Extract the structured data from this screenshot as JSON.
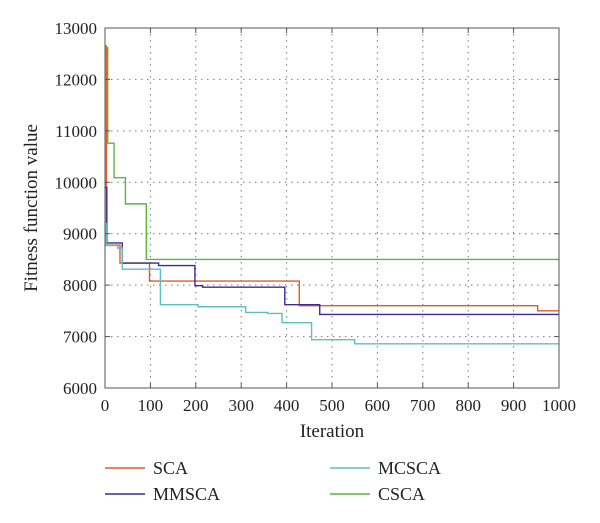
{
  "chart_data": {
    "type": "line",
    "title": "",
    "xlabel": "Iteration",
    "ylabel": "Fitness function value",
    "xlim": [
      0,
      1000
    ],
    "ylim": [
      6000,
      13000
    ],
    "xticks": [
      0,
      100,
      200,
      300,
      400,
      500,
      600,
      700,
      800,
      900,
      1000
    ],
    "yticks": [
      6000,
      7000,
      8000,
      9000,
      10000,
      11000,
      12000,
      13000
    ],
    "grid": "dotted",
    "legend_position": "below plot, two columns",
    "series": [
      {
        "name": "SCA",
        "color": "#e05a2b",
        "step": true,
        "points": [
          [
            0,
            12650
          ],
          [
            3,
            8780
          ],
          [
            30,
            8780
          ],
          [
            33,
            8430
          ],
          [
            95,
            8430
          ],
          [
            98,
            8080
          ],
          [
            425,
            8080
          ],
          [
            428,
            7600
          ],
          [
            950,
            7600
          ],
          [
            953,
            7500
          ],
          [
            1000,
            7500
          ]
        ]
      },
      {
        "name": "MMSCA",
        "color": "#3a2c93",
        "step": true,
        "points": [
          [
            0,
            9900
          ],
          [
            4,
            8820
          ],
          [
            35,
            8820
          ],
          [
            38,
            8430
          ],
          [
            115,
            8430
          ],
          [
            118,
            8380
          ],
          [
            195,
            8380
          ],
          [
            198,
            7990
          ],
          [
            215,
            7960
          ],
          [
            393,
            7960
          ],
          [
            396,
            7620
          ],
          [
            470,
            7620
          ],
          [
            473,
            7430
          ],
          [
            1000,
            7430
          ]
        ]
      },
      {
        "name": "MCSCA",
        "color": "#5cbfc0",
        "step": true,
        "points": [
          [
            0,
            9200
          ],
          [
            3,
            8770
          ],
          [
            25,
            8770
          ],
          [
            28,
            8720
          ],
          [
            35,
            8720
          ],
          [
            38,
            8310
          ],
          [
            115,
            8310
          ],
          [
            122,
            7620
          ],
          [
            200,
            7620
          ],
          [
            205,
            7580
          ],
          [
            305,
            7580
          ],
          [
            310,
            7470
          ],
          [
            355,
            7470
          ],
          [
            358,
            7450
          ],
          [
            385,
            7450
          ],
          [
            390,
            7270
          ],
          [
            445,
            7270
          ],
          [
            455,
            6940
          ],
          [
            545,
            6940
          ],
          [
            550,
            6860
          ],
          [
            1000,
            6860
          ]
        ]
      },
      {
        "name": "CSCA",
        "color": "#5db53c",
        "step": true,
        "points": [
          [
            0,
            12650
          ],
          [
            3,
            12620
          ],
          [
            6,
            10760
          ],
          [
            18,
            10760
          ],
          [
            20,
            10090
          ],
          [
            42,
            10090
          ],
          [
            45,
            9580
          ],
          [
            88,
            9580
          ],
          [
            91,
            8500
          ],
          [
            1000,
            8500
          ]
        ]
      }
    ]
  }
}
